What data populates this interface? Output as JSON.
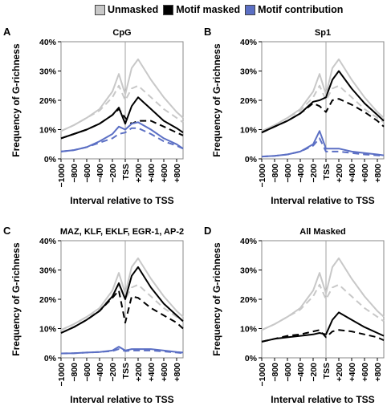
{
  "legend": [
    {
      "label": "Unmasked",
      "color": "#c8c8c8"
    },
    {
      "label": "Motif masked",
      "color": "#000000"
    },
    {
      "label": "Motif contribution",
      "color": "#5b6fc4"
    }
  ],
  "chart_data": [
    {
      "type": "line",
      "panel_letter": "A",
      "title": "CpG",
      "xlabel": "Interval relative to TSS",
      "ylabel": "Frequency of G-richness",
      "x_tick_labels": [
        "−1000",
        "−800",
        "−600",
        "−400",
        "−200",
        "TSS",
        "+200",
        "+400",
        "+600",
        "+800"
      ],
      "y_tick_labels": [
        "0%",
        "10%",
        "20%",
        "30%",
        "40%"
      ],
      "ylim": [
        0,
        40
      ],
      "xlim": [
        -1000,
        900
      ],
      "tss_marker": 0,
      "series": [
        {
          "name": "Unmasked",
          "style": "solid",
          "color": "#c8c8c8",
          "x": [
            -1000,
            -800,
            -600,
            -400,
            -200,
            -100,
            0,
            100,
            200,
            400,
            600,
            800,
            900
          ],
          "y": [
            9.5,
            11.5,
            14,
            17,
            23,
            29,
            22,
            31,
            34,
            27,
            21,
            16,
            14
          ]
        },
        {
          "name": "Unmasked",
          "style": "dashed",
          "color": "#c8c8c8",
          "x": [
            -1000,
            -800,
            -600,
            -400,
            -200,
            -100,
            0,
            100,
            200,
            400,
            600,
            800,
            900
          ],
          "y": [
            9.5,
            11.5,
            14,
            16.5,
            21,
            25,
            20,
            24,
            25,
            21,
            17,
            14,
            12.5
          ]
        },
        {
          "name": "Motif masked",
          "style": "solid",
          "color": "#000000",
          "x": [
            -1000,
            -800,
            -600,
            -400,
            -200,
            -100,
            0,
            100,
            200,
            400,
            600,
            800,
            900
          ],
          "y": [
            7,
            8.5,
            10,
            12,
            15,
            17.5,
            12,
            18,
            21,
            17,
            13,
            10.5,
            9
          ]
        },
        {
          "name": "Motif masked",
          "style": "dashed",
          "color": "#000000",
          "x": [
            -1000,
            -800,
            -600,
            -400,
            -200,
            -100,
            0,
            100,
            200,
            400,
            600,
            800,
            900
          ],
          "y": [
            7,
            8.5,
            10,
            12,
            15,
            17,
            14,
            12,
            13,
            13,
            11,
            9,
            8
          ]
        },
        {
          "name": "Motif contribution",
          "style": "solid",
          "color": "#5b6fc4",
          "x": [
            -1000,
            -800,
            -600,
            -400,
            -200,
            -100,
            0,
            100,
            200,
            400,
            600,
            800,
            900
          ],
          "y": [
            2.5,
            3,
            4,
            6,
            8.5,
            11,
            10,
            12,
            12.5,
            10,
            7,
            5,
            3.5
          ]
        },
        {
          "name": "Motif contribution",
          "style": "dashed",
          "color": "#5b6fc4",
          "x": [
            -1000,
            -800,
            -600,
            -400,
            -200,
            -100,
            0,
            100,
            200,
            400,
            600,
            800,
            900
          ],
          "y": [
            2.5,
            3,
            4,
            5.5,
            7,
            8.5,
            9,
            10.5,
            10.5,
            8.5,
            6,
            4.5,
            3.5
          ]
        }
      ]
    },
    {
      "type": "line",
      "panel_letter": "B",
      "title": "Sp1",
      "xlabel": "Interval relative to TSS",
      "ylabel": "Frequency of G-richness",
      "x_tick_labels": [
        "−1000",
        "−800",
        "−600",
        "−400",
        "−200",
        "TSS",
        "+200",
        "+400",
        "+600",
        "+800"
      ],
      "y_tick_labels": [
        "0%",
        "10%",
        "20%",
        "30%",
        "40%"
      ],
      "ylim": [
        0,
        40
      ],
      "xlim": [
        -1000,
        900
      ],
      "tss_marker": 0,
      "series": [
        {
          "name": "Unmasked",
          "style": "solid",
          "color": "#c8c8c8",
          "x": [
            -1000,
            -800,
            -600,
            -400,
            -200,
            -100,
            0,
            100,
            200,
            400,
            600,
            800,
            900
          ],
          "y": [
            9.5,
            11.5,
            14,
            17,
            23,
            29,
            22,
            31,
            34,
            27,
            21,
            16,
            14
          ]
        },
        {
          "name": "Unmasked",
          "style": "dashed",
          "color": "#c8c8c8",
          "x": [
            -1000,
            -800,
            -600,
            -400,
            -200,
            -100,
            0,
            100,
            200,
            400,
            600,
            800,
            900
          ],
          "y": [
            9.5,
            11.5,
            14,
            16.5,
            21,
            25,
            20,
            24,
            25,
            21,
            17,
            14,
            12.5
          ]
        },
        {
          "name": "Motif masked",
          "style": "solid",
          "color": "#000000",
          "x": [
            -1000,
            -800,
            -600,
            -400,
            -200,
            -100,
            0,
            100,
            200,
            400,
            600,
            800,
            900
          ],
          "y": [
            9,
            11,
            13,
            15.5,
            19.5,
            20,
            21,
            27,
            30,
            24,
            19,
            15,
            13
          ]
        },
        {
          "name": "Motif masked",
          "style": "dashed",
          "color": "#000000",
          "x": [
            -1000,
            -800,
            -600,
            -400,
            -200,
            -100,
            0,
            100,
            200,
            400,
            600,
            800,
            900
          ],
          "y": [
            9,
            11,
            13,
            15.5,
            19,
            18,
            16,
            20,
            20.5,
            18.5,
            16,
            13,
            11
          ]
        },
        {
          "name": "Motif contribution",
          "style": "solid",
          "color": "#5b6fc4",
          "x": [
            -1000,
            -800,
            -600,
            -400,
            -200,
            -100,
            0,
            100,
            200,
            400,
            600,
            800,
            900
          ],
          "y": [
            0.8,
            1,
            1.5,
            2.5,
            5,
            9.5,
            3.5,
            3.5,
            3.5,
            2.5,
            2,
            1.5,
            1.2
          ]
        },
        {
          "name": "Motif contribution",
          "style": "dashed",
          "color": "#5b6fc4",
          "x": [
            -1000,
            -800,
            -600,
            -400,
            -200,
            -100,
            0,
            100,
            200,
            400,
            600,
            800,
            900
          ],
          "y": [
            0.8,
            1,
            1.5,
            2.5,
            4.5,
            7,
            2.5,
            2.5,
            2.5,
            2,
            1.5,
            1.2,
            1
          ]
        }
      ]
    },
    {
      "type": "line",
      "panel_letter": "C",
      "title": "MAZ, KLF, EKLF, EGR-1, AP-2",
      "xlabel": "Interval relative to TSS",
      "ylabel": "Frequency of G-richness",
      "x_tick_labels": [
        "−1000",
        "−800",
        "−600",
        "−400",
        "−200",
        "TSS",
        "+200",
        "+400",
        "+600",
        "+800"
      ],
      "y_tick_labels": [
        "0%",
        "10%",
        "20%",
        "30%",
        "40%"
      ],
      "ylim": [
        0,
        40
      ],
      "xlim": [
        -1000,
        900
      ],
      "tss_marker": 0,
      "series": [
        {
          "name": "Unmasked",
          "style": "solid",
          "color": "#c8c8c8",
          "x": [
            -1000,
            -800,
            -600,
            -400,
            -200,
            -100,
            0,
            100,
            200,
            400,
            600,
            800,
            900
          ],
          "y": [
            9.5,
            11.5,
            14,
            17,
            23,
            29,
            22,
            31,
            34,
            27,
            21,
            16,
            14
          ]
        },
        {
          "name": "Unmasked",
          "style": "dashed",
          "color": "#c8c8c8",
          "x": [
            -1000,
            -800,
            -600,
            -400,
            -200,
            -100,
            0,
            100,
            200,
            400,
            600,
            800,
            900
          ],
          "y": [
            9.5,
            11.5,
            14,
            16.5,
            21,
            25,
            20,
            24,
            25,
            21,
            17,
            14,
            12.5
          ]
        },
        {
          "name": "Motif masked",
          "style": "solid",
          "color": "#000000",
          "x": [
            -1000,
            -800,
            -600,
            -400,
            -200,
            -100,
            0,
            100,
            200,
            400,
            600,
            800,
            900
          ],
          "y": [
            8.5,
            10.5,
            13,
            16,
            21,
            25.5,
            20,
            28,
            31,
            24,
            18.5,
            14.5,
            12.5
          ]
        },
        {
          "name": "Motif masked",
          "style": "dashed",
          "color": "#000000",
          "x": [
            -1000,
            -800,
            -600,
            -400,
            -200,
            -100,
            0,
            100,
            200,
            400,
            600,
            800,
            900
          ],
          "y": [
            8.5,
            10.5,
            13,
            16,
            20.5,
            23,
            12,
            21,
            20.5,
            17,
            14.5,
            12,
            10
          ]
        },
        {
          "name": "Motif contribution",
          "style": "solid",
          "color": "#5b6fc4",
          "x": [
            -1000,
            -800,
            -600,
            -400,
            -200,
            -100,
            0,
            100,
            200,
            400,
            600,
            800,
            900
          ],
          "y": [
            1.5,
            1.6,
            1.8,
            2,
            2.5,
            3.8,
            2.5,
            3,
            3,
            3,
            2.5,
            2,
            1.8
          ]
        },
        {
          "name": "Motif contribution",
          "style": "dashed",
          "color": "#5b6fc4",
          "x": [
            -1000,
            -800,
            -600,
            -400,
            -200,
            -100,
            0,
            100,
            200,
            400,
            600,
            800,
            900
          ],
          "y": [
            1.5,
            1.6,
            1.8,
            2,
            2.3,
            3,
            2.3,
            2.5,
            2.5,
            2.5,
            2.2,
            1.8,
            1.6
          ]
        }
      ]
    },
    {
      "type": "line",
      "panel_letter": "D",
      "title": "All Masked",
      "xlabel": "Interval relative to TSS",
      "ylabel": "Frequency of G-richness",
      "x_tick_labels": [
        "−1000",
        "−800",
        "−600",
        "−400",
        "−200",
        "TSS",
        "+200",
        "+400",
        "+600",
        "+800"
      ],
      "y_tick_labels": [
        "0%",
        "10%",
        "20%",
        "30%",
        "40%"
      ],
      "ylim": [
        0,
        40
      ],
      "xlim": [
        -1000,
        900
      ],
      "tss_marker": 0,
      "series": [
        {
          "name": "Unmasked",
          "style": "solid",
          "color": "#c8c8c8",
          "x": [
            -1000,
            -800,
            -600,
            -400,
            -200,
            -100,
            0,
            100,
            200,
            400,
            600,
            800,
            900
          ],
          "y": [
            9.5,
            11.5,
            14,
            17,
            23,
            29,
            22,
            31,
            34,
            27,
            21,
            16,
            14
          ]
        },
        {
          "name": "Unmasked",
          "style": "dashed",
          "color": "#c8c8c8",
          "x": [
            -1000,
            -800,
            -600,
            -400,
            -200,
            -100,
            0,
            100,
            200,
            400,
            600,
            800,
            900
          ],
          "y": [
            9.5,
            11.5,
            14,
            16.5,
            21,
            25,
            20,
            24,
            25,
            21,
            17,
            14,
            12.5
          ]
        },
        {
          "name": "Motif masked",
          "style": "solid",
          "color": "#000000",
          "x": [
            -1000,
            -800,
            -600,
            -400,
            -200,
            -100,
            0,
            100,
            200,
            400,
            600,
            800,
            900
          ],
          "y": [
            5.5,
            6.5,
            7,
            7.5,
            8,
            8.5,
            8,
            13,
            15.5,
            13,
            10.5,
            8.5,
            7.5
          ]
        },
        {
          "name": "Motif masked",
          "style": "dashed",
          "color": "#000000",
          "x": [
            -1000,
            -800,
            -600,
            -400,
            -200,
            -100,
            0,
            100,
            200,
            400,
            600,
            800,
            900
          ],
          "y": [
            5.5,
            6.5,
            7.5,
            8,
            9,
            9.5,
            7,
            9,
            9.5,
            9,
            8,
            7,
            6
          ]
        }
      ]
    }
  ]
}
